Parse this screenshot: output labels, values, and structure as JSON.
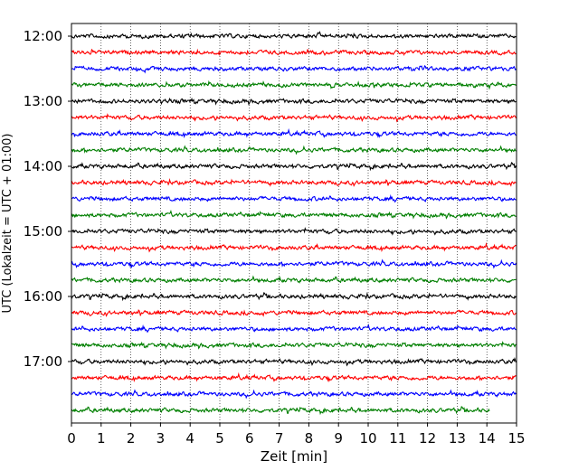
{
  "chart_data": {
    "type": "line",
    "xlabel": "Zeit  [min]",
    "ylabel": "UTC (Lokalzeit = UTC + 01:00)",
    "xlim": [
      0,
      15
    ],
    "x_ticks": [
      "0",
      "1",
      "2",
      "3",
      "4",
      "5",
      "6",
      "7",
      "8",
      "9",
      "10",
      "11",
      "12",
      "13",
      "14",
      "15"
    ],
    "y_ticks": [
      "12:00",
      "13:00",
      "14:00",
      "15:00",
      "16:00",
      "17:00"
    ],
    "grid": "vertical dotted lines at each minute",
    "trace_colors": [
      "#000000",
      "#ff0000",
      "#0000ff",
      "#007f00"
    ],
    "traces_start": "12:00",
    "trace_interval_min": 15,
    "trace_count": 24,
    "last_trace_end_min": 14.1
  }
}
